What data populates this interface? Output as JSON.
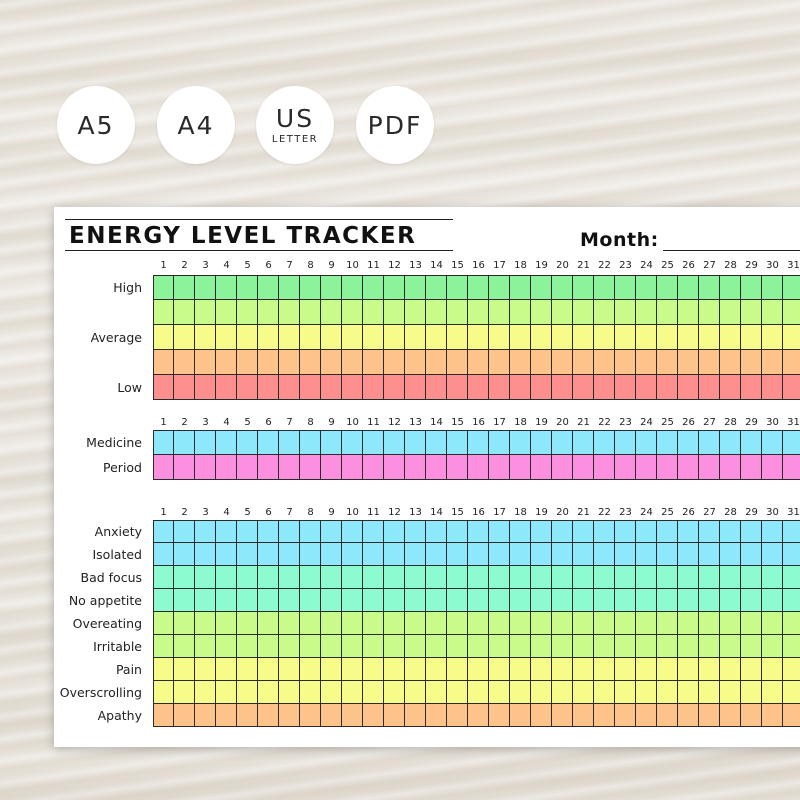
{
  "badges": [
    {
      "main": "A5",
      "sub": ""
    },
    {
      "main": "A4",
      "sub": ""
    },
    {
      "main": "US",
      "sub": "LETTER"
    },
    {
      "main": "PDF",
      "sub": ""
    }
  ],
  "header": {
    "title": "ENERGY LEVEL TRACKER",
    "month_label": "Month:"
  },
  "days": [
    "1",
    "2",
    "3",
    "4",
    "5",
    "6",
    "7",
    "8",
    "9",
    "10",
    "11",
    "12",
    "13",
    "14",
    "15",
    "16",
    "17",
    "18",
    "19",
    "20",
    "21",
    "22",
    "23",
    "24",
    "25",
    "26",
    "27",
    "28",
    "29",
    "30",
    "31"
  ],
  "sections": [
    {
      "id": "energy",
      "rows": [
        {
          "label": "High",
          "color": "#8cf39a"
        },
        {
          "label": "",
          "color": "#c8fb8a"
        },
        {
          "label": "Average",
          "color": "#f6fb8a"
        },
        {
          "label": "",
          "color": "#fec38a"
        },
        {
          "label": "Low",
          "color": "#fe8f8f"
        }
      ]
    },
    {
      "id": "tracking",
      "rows": [
        {
          "label": "Medicine",
          "color": "#8de8fb"
        },
        {
          "label": "Period",
          "color": "#fd8fe0"
        }
      ]
    },
    {
      "id": "symptoms",
      "rows": [
        {
          "label": "Anxiety",
          "color": "#8de8fb"
        },
        {
          "label": "Isolated",
          "color": "#8de8fb"
        },
        {
          "label": "Bad focus",
          "color": "#8cfbd0"
        },
        {
          "label": "No appetite",
          "color": "#8cfbd0"
        },
        {
          "label": "Overeating",
          "color": "#c8fb8a"
        },
        {
          "label": "Irritable",
          "color": "#c8fb8a"
        },
        {
          "label": "Pain",
          "color": "#f6fb8a"
        },
        {
          "label": "Overscrolling",
          "color": "#f6fb8a"
        },
        {
          "label": "Apathy",
          "color": "#fec38a"
        }
      ]
    }
  ]
}
